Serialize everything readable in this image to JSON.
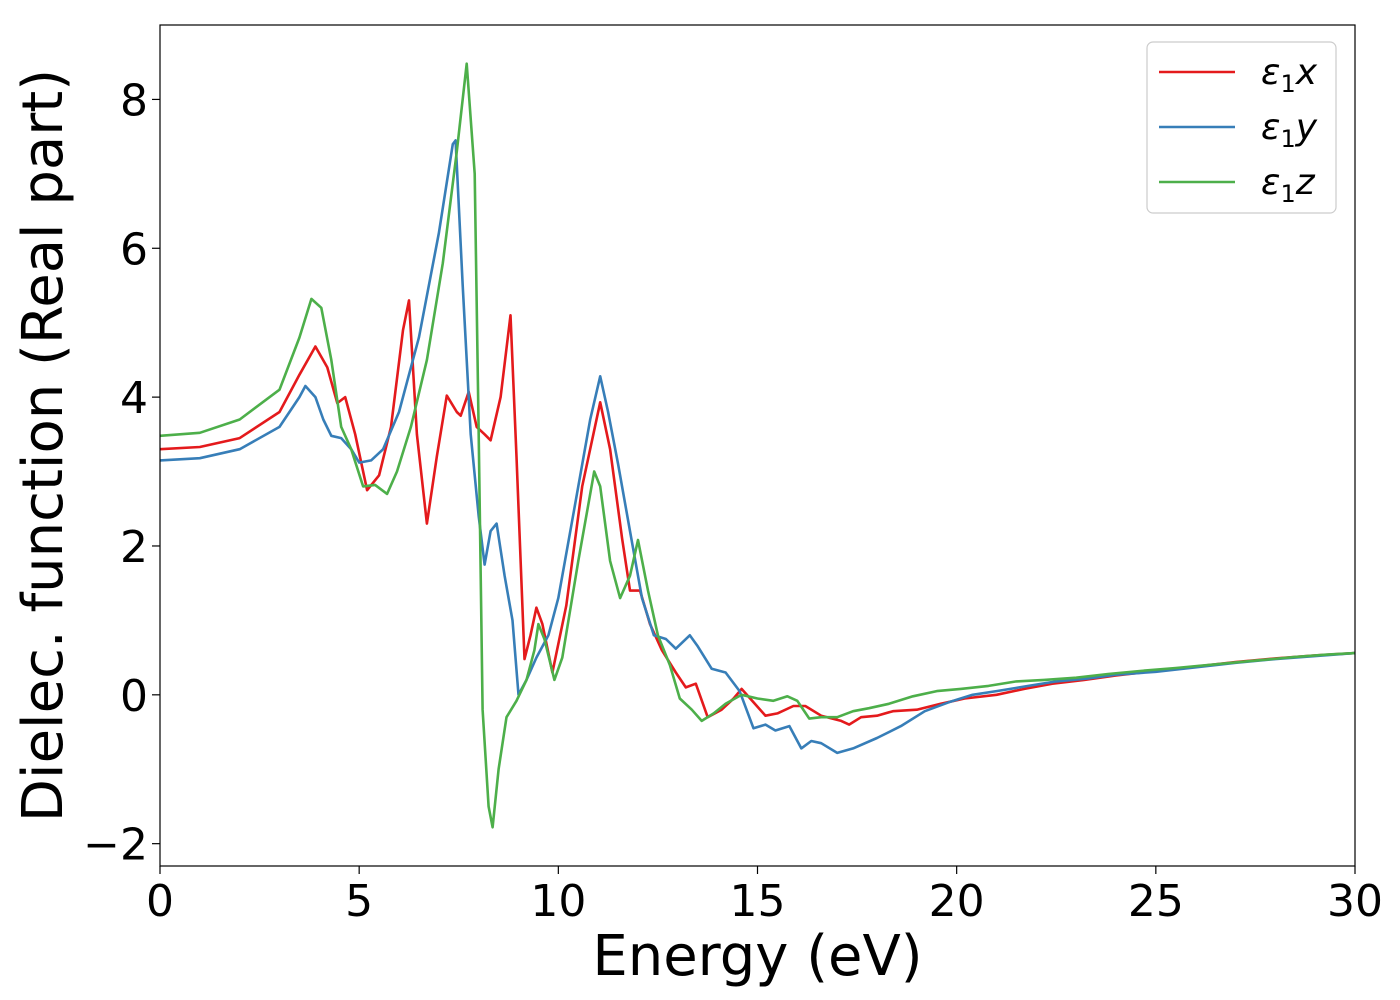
{
  "chart_data": {
    "type": "line",
    "title": "",
    "xlabel": "Energy (eV)",
    "ylabel": "Dielec. function (Real part)",
    "xlim": [
      0,
      30
    ],
    "ylim": [
      -2.3,
      9.0
    ],
    "xticks": [
      0,
      5,
      10,
      15,
      20,
      25,
      30
    ],
    "yticks": [
      -2,
      0,
      2,
      4,
      6,
      8
    ],
    "xtick_labels": [
      "0",
      "5",
      "10",
      "15",
      "20",
      "25",
      "30"
    ],
    "ytick_labels": [
      "−2",
      "0",
      "2",
      "4",
      "6",
      "8"
    ],
    "grid": false,
    "legend_position": "top-right",
    "series": [
      {
        "name": "ε₁x",
        "legend_base": "ε",
        "legend_sub": "1",
        "legend_suffix": "x",
        "color": "#e41a1c",
        "points": [
          [
            0,
            3.3
          ],
          [
            1,
            3.33
          ],
          [
            2,
            3.45
          ],
          [
            3,
            3.8
          ],
          [
            3.5,
            4.3
          ],
          [
            3.9,
            4.68
          ],
          [
            4.2,
            4.4
          ],
          [
            4.45,
            3.92
          ],
          [
            4.65,
            4.0
          ],
          [
            4.9,
            3.5
          ],
          [
            5.2,
            2.75
          ],
          [
            5.5,
            2.95
          ],
          [
            5.8,
            3.6
          ],
          [
            6.1,
            4.9
          ],
          [
            6.25,
            5.3
          ],
          [
            6.45,
            3.5
          ],
          [
            6.7,
            2.3
          ],
          [
            6.95,
            3.2
          ],
          [
            7.2,
            4.02
          ],
          [
            7.45,
            3.8
          ],
          [
            7.55,
            3.75
          ],
          [
            7.75,
            4.07
          ],
          [
            7.95,
            3.6
          ],
          [
            8.15,
            3.5
          ],
          [
            8.3,
            3.42
          ],
          [
            8.55,
            4.0
          ],
          [
            8.8,
            5.1
          ],
          [
            8.95,
            3.2
          ],
          [
            9.15,
            0.48
          ],
          [
            9.3,
            0.8
          ],
          [
            9.45,
            1.17
          ],
          [
            9.6,
            0.95
          ],
          [
            9.85,
            0.3
          ],
          [
            10.2,
            1.2
          ],
          [
            10.6,
            2.8
          ],
          [
            11.05,
            3.93
          ],
          [
            11.3,
            3.3
          ],
          [
            11.6,
            2.1
          ],
          [
            11.8,
            1.4
          ],
          [
            12.05,
            1.4
          ],
          [
            12.3,
            0.95
          ],
          [
            12.6,
            0.6
          ],
          [
            12.95,
            0.3
          ],
          [
            13.2,
            0.1
          ],
          [
            13.45,
            0.15
          ],
          [
            13.75,
            -0.3
          ],
          [
            14.1,
            -0.2
          ],
          [
            14.4,
            -0.05
          ],
          [
            14.6,
            0.08
          ],
          [
            14.9,
            -0.1
          ],
          [
            15.2,
            -0.28
          ],
          [
            15.5,
            -0.25
          ],
          [
            15.9,
            -0.15
          ],
          [
            16.2,
            -0.15
          ],
          [
            16.6,
            -0.28
          ],
          [
            17.1,
            -0.35
          ],
          [
            17.3,
            -0.4
          ],
          [
            17.6,
            -0.3
          ],
          [
            18.0,
            -0.28
          ],
          [
            18.4,
            -0.22
          ],
          [
            19.0,
            -0.2
          ],
          [
            19.6,
            -0.12
          ],
          [
            20.2,
            -0.05
          ],
          [
            21.0,
            0.0
          ],
          [
            21.7,
            0.08
          ],
          [
            22.4,
            0.15
          ],
          [
            23.2,
            0.2
          ],
          [
            24.0,
            0.26
          ],
          [
            25.0,
            0.32
          ],
          [
            26.0,
            0.38
          ],
          [
            27.0,
            0.44
          ],
          [
            28.0,
            0.49
          ],
          [
            29.0,
            0.53
          ],
          [
            30.0,
            0.56
          ]
        ]
      },
      {
        "name": "ε₁y",
        "legend_base": "ε",
        "legend_sub": "1",
        "legend_suffix": "y",
        "color": "#377eb8",
        "points": [
          [
            0,
            3.15
          ],
          [
            1,
            3.18
          ],
          [
            2,
            3.3
          ],
          [
            3,
            3.6
          ],
          [
            3.5,
            4.0
          ],
          [
            3.65,
            4.15
          ],
          [
            3.9,
            4.0
          ],
          [
            4.1,
            3.7
          ],
          [
            4.3,
            3.48
          ],
          [
            4.55,
            3.45
          ],
          [
            4.8,
            3.3
          ],
          [
            5.0,
            3.12
          ],
          [
            5.3,
            3.15
          ],
          [
            5.6,
            3.3
          ],
          [
            6.0,
            3.8
          ],
          [
            6.5,
            4.8
          ],
          [
            7.0,
            6.2
          ],
          [
            7.35,
            7.4
          ],
          [
            7.42,
            7.45
          ],
          [
            7.6,
            5.5
          ],
          [
            7.8,
            3.5
          ],
          [
            8.0,
            2.4
          ],
          [
            8.15,
            1.75
          ],
          [
            8.3,
            2.2
          ],
          [
            8.45,
            2.3
          ],
          [
            8.65,
            1.6
          ],
          [
            8.85,
            1.0
          ],
          [
            9.0,
            0.0
          ],
          [
            9.2,
            0.2
          ],
          [
            9.45,
            0.5
          ],
          [
            9.75,
            0.8
          ],
          [
            10.0,
            1.3
          ],
          [
            10.4,
            2.5
          ],
          [
            10.8,
            3.7
          ],
          [
            11.05,
            4.28
          ],
          [
            11.25,
            3.8
          ],
          [
            11.5,
            3.1
          ],
          [
            11.8,
            2.2
          ],
          [
            12.1,
            1.3
          ],
          [
            12.4,
            0.8
          ],
          [
            12.7,
            0.75
          ],
          [
            12.95,
            0.62
          ],
          [
            13.3,
            0.8
          ],
          [
            13.5,
            0.65
          ],
          [
            13.85,
            0.35
          ],
          [
            14.2,
            0.3
          ],
          [
            14.55,
            0.05
          ],
          [
            14.9,
            -0.45
          ],
          [
            15.2,
            -0.4
          ],
          [
            15.45,
            -0.48
          ],
          [
            15.8,
            -0.42
          ],
          [
            16.1,
            -0.72
          ],
          [
            16.35,
            -0.62
          ],
          [
            16.6,
            -0.65
          ],
          [
            17.0,
            -0.78
          ],
          [
            17.4,
            -0.72
          ],
          [
            18.0,
            -0.58
          ],
          [
            18.6,
            -0.42
          ],
          [
            19.2,
            -0.22
          ],
          [
            19.8,
            -0.1
          ],
          [
            20.4,
            0.0
          ],
          [
            21.0,
            0.05
          ],
          [
            21.8,
            0.12
          ],
          [
            22.5,
            0.18
          ],
          [
            23.3,
            0.22
          ],
          [
            24.0,
            0.27
          ],
          [
            25.0,
            0.31
          ],
          [
            26.0,
            0.37
          ],
          [
            27.0,
            0.43
          ],
          [
            28.0,
            0.48
          ],
          [
            29.0,
            0.52
          ],
          [
            30.0,
            0.56
          ]
        ]
      },
      {
        "name": "ε₁z",
        "legend_base": "ε",
        "legend_sub": "1",
        "legend_suffix": "z",
        "color": "#4daf4a",
        "points": [
          [
            0,
            3.48
          ],
          [
            1,
            3.52
          ],
          [
            2,
            3.7
          ],
          [
            3,
            4.1
          ],
          [
            3.5,
            4.8
          ],
          [
            3.8,
            5.32
          ],
          [
            4.05,
            5.2
          ],
          [
            4.3,
            4.5
          ],
          [
            4.55,
            3.6
          ],
          [
            4.8,
            3.3
          ],
          [
            5.1,
            2.8
          ],
          [
            5.4,
            2.82
          ],
          [
            5.7,
            2.7
          ],
          [
            5.95,
            3.0
          ],
          [
            6.3,
            3.6
          ],
          [
            6.7,
            4.5
          ],
          [
            7.1,
            5.8
          ],
          [
            7.45,
            7.3
          ],
          [
            7.7,
            8.48
          ],
          [
            7.9,
            7.0
          ],
          [
            8.0,
            3.5
          ],
          [
            8.1,
            -0.2
          ],
          [
            8.25,
            -1.5
          ],
          [
            8.35,
            -1.78
          ],
          [
            8.5,
            -1.0
          ],
          [
            8.7,
            -0.3
          ],
          [
            8.95,
            -0.08
          ],
          [
            9.2,
            0.2
          ],
          [
            9.4,
            0.6
          ],
          [
            9.5,
            0.95
          ],
          [
            9.65,
            0.75
          ],
          [
            9.9,
            0.2
          ],
          [
            10.1,
            0.5
          ],
          [
            10.5,
            1.8
          ],
          [
            10.9,
            3.0
          ],
          [
            11.05,
            2.8
          ],
          [
            11.3,
            1.8
          ],
          [
            11.55,
            1.3
          ],
          [
            11.8,
            1.6
          ],
          [
            12.0,
            2.08
          ],
          [
            12.25,
            1.4
          ],
          [
            12.5,
            0.8
          ],
          [
            12.8,
            0.4
          ],
          [
            13.05,
            -0.05
          ],
          [
            13.35,
            -0.2
          ],
          [
            13.6,
            -0.35
          ],
          [
            13.9,
            -0.25
          ],
          [
            14.2,
            -0.12
          ],
          [
            14.6,
            0.0
          ],
          [
            15.0,
            -0.05
          ],
          [
            15.4,
            -0.08
          ],
          [
            15.75,
            -0.02
          ],
          [
            16.0,
            -0.08
          ],
          [
            16.3,
            -0.32
          ],
          [
            16.6,
            -0.3
          ],
          [
            17.0,
            -0.3
          ],
          [
            17.4,
            -0.22
          ],
          [
            17.8,
            -0.18
          ],
          [
            18.3,
            -0.12
          ],
          [
            18.9,
            -0.02
          ],
          [
            19.5,
            0.05
          ],
          [
            20.1,
            0.08
          ],
          [
            20.8,
            0.12
          ],
          [
            21.5,
            0.18
          ],
          [
            22.2,
            0.2
          ],
          [
            23.0,
            0.23
          ],
          [
            23.8,
            0.28
          ],
          [
            24.6,
            0.32
          ],
          [
            25.5,
            0.36
          ],
          [
            26.5,
            0.41
          ],
          [
            27.5,
            0.46
          ],
          [
            28.5,
            0.51
          ],
          [
            29.3,
            0.54
          ],
          [
            30.0,
            0.56
          ]
        ]
      }
    ]
  }
}
